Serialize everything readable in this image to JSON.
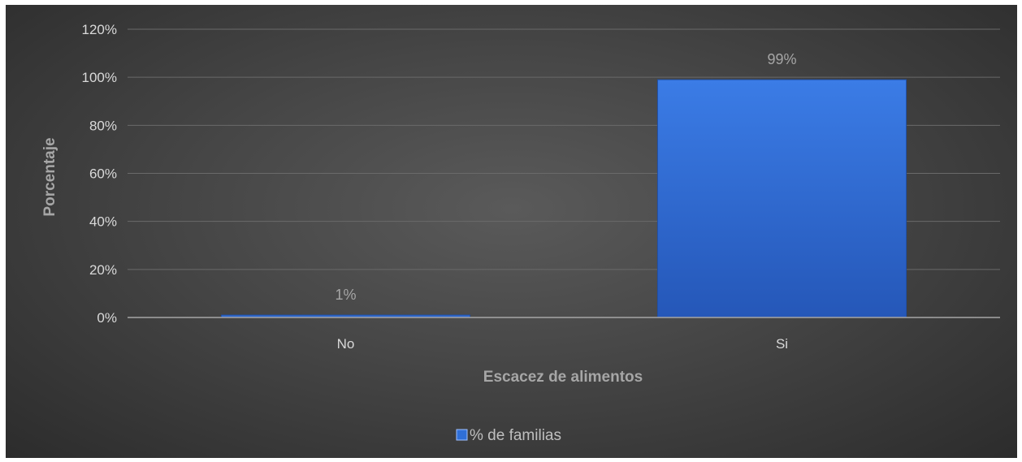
{
  "chart_data": {
    "type": "bar",
    "categories": [
      "No",
      "Si"
    ],
    "series": [
      {
        "name": "% de familias",
        "values": [
          1,
          99
        ]
      }
    ],
    "data_labels": [
      "1%",
      "99%"
    ],
    "title": "",
    "xlabel": "Escacez de alimentos",
    "ylabel": "Porcentaje",
    "ylim": [
      0,
      120
    ],
    "yticks": [
      "0%",
      "20%",
      "40%",
      "60%",
      "80%",
      "100%",
      "120%"
    ],
    "grid": true,
    "legend_position": "bottom",
    "colors": {
      "bar": "#2f6fd8",
      "bar_light": "#3b7ce6",
      "bar_dark": "#2557b8",
      "background": "#474747",
      "gridline": "#6a6a6a"
    }
  }
}
